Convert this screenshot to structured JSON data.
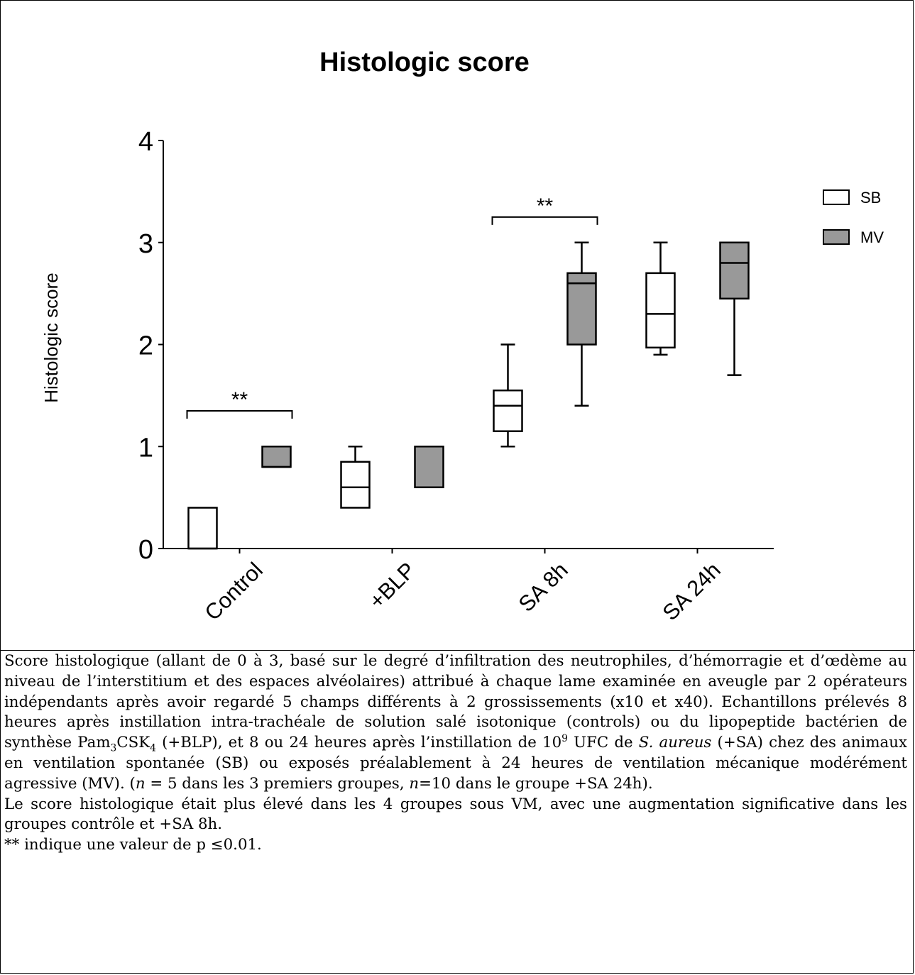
{
  "chart_data": {
    "type": "box",
    "title": "Histologic score",
    "ylabel": "Histologic score",
    "xlabel": "",
    "ylim": [
      0,
      4
    ],
    "yticks": [
      "0",
      "1",
      "2",
      "3",
      "4"
    ],
    "categories": [
      "Control",
      "+BLP",
      "SA 8h",
      "SA 24h"
    ],
    "series": [
      {
        "name": "SB",
        "color": "#ffffff",
        "boxes": [
          {
            "min": 0,
            "q1": 0,
            "median": 0,
            "q3": 0.4,
            "max": 0.4
          },
          {
            "min": 0.4,
            "q1": 0.4,
            "median": 0.6,
            "q3": 0.85,
            "max": 1.0
          },
          {
            "min": 1.0,
            "q1": 1.15,
            "median": 1.4,
            "q3": 1.55,
            "max": 2.0
          },
          {
            "min": 1.9,
            "q1": 1.97,
            "median": 2.3,
            "q3": 2.7,
            "max": 3.0
          }
        ]
      },
      {
        "name": "MV",
        "color": "#999999",
        "boxes": [
          {
            "min": 0.8,
            "q1": 0.8,
            "median": 0.8,
            "q3": 1.0,
            "max": 1.0
          },
          {
            "min": 0.6,
            "q1": 0.6,
            "median": 0.6,
            "q3": 1.0,
            "max": 1.0
          },
          {
            "min": 1.4,
            "q1": 2.0,
            "median": 2.6,
            "q3": 2.7,
            "max": 3.0
          },
          {
            "min": 1.7,
            "q1": 2.45,
            "median": 2.8,
            "q3": 3.0,
            "max": 3.0
          }
        ]
      }
    ],
    "significance": [
      {
        "category": "Control",
        "label": "**",
        "y": 1.35
      },
      {
        "category": "SA 8h",
        "label": "**",
        "y": 3.25
      }
    ],
    "legend_position": "right"
  },
  "caption": {
    "p1": [
      {
        "t": "Score histologique (allant de 0 à 3, basé sur le degré d’infiltration des neutrophiles, d’hémorragie et d’œdème au niveau de l’interstitium et des espaces alvéolaires) attribué à chaque lame examinée en aveugle par 2 opérateurs indépendants après avoir regardé 5 champs différents à 2 grossissements (x10 et x40). Echantillons prélevés 8 heures après instillation intra-trachéale de solution salé isotonique (controls) ou du lipopeptide bactérien de synthèse Pam"
      },
      {
        "t": "3",
        "sub": true
      },
      {
        "t": "CSK"
      },
      {
        "t": "4",
        "sub": true
      },
      {
        "t": " (+BLP), et 8 ou 24 heures après l’instillation de 10"
      },
      {
        "t": "9",
        "sup": true
      },
      {
        "t": " UFC de "
      },
      {
        "t": "S. aureus",
        "it": true
      },
      {
        "t": " (+SA) chez des animaux en ventilation spontanée (SB) ou exposés préalablement à 24 heures de ventilation mécanique modérément agressive (MV). ("
      },
      {
        "t": "n",
        "it": true
      },
      {
        "t": " = 5 dans les 3 premiers groupes, "
      },
      {
        "t": "n",
        "it": true
      },
      {
        "t": "=10 dans le groupe +SA 24h)."
      }
    ],
    "p2": "Le score histologique était plus élevé dans les 4 groupes sous VM, avec une augmentation significative dans les groupes contrôle et +SA 8h.",
    "p3": "** indique une valeur de p ≤0.01."
  }
}
